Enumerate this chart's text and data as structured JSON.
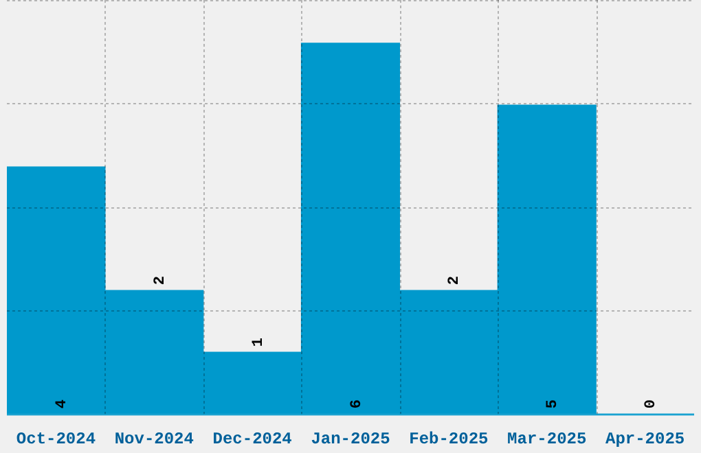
{
  "chart_data": {
    "type": "bar",
    "categories": [
      "Oct-2024",
      "Nov-2024",
      "Dec-2024",
      "Jan-2025",
      "Feb-2025",
      "Mar-2025",
      "Apr-2025"
    ],
    "values": [
      4,
      2,
      1,
      6,
      2,
      5,
      0
    ],
    "color": "#0099cc",
    "ylim": [
      0,
      6.7
    ],
    "yticks": [
      {
        "value": 0,
        "label": null
      },
      {
        "value": 1.675,
        "label": null
      },
      {
        "value": 3.35,
        "label": null
      },
      {
        "value": 5.025,
        "label": null
      },
      {
        "value": 6.7,
        "label": null
      }
    ],
    "tick_labels": "x",
    "grid": true,
    "data_labels": true
  }
}
